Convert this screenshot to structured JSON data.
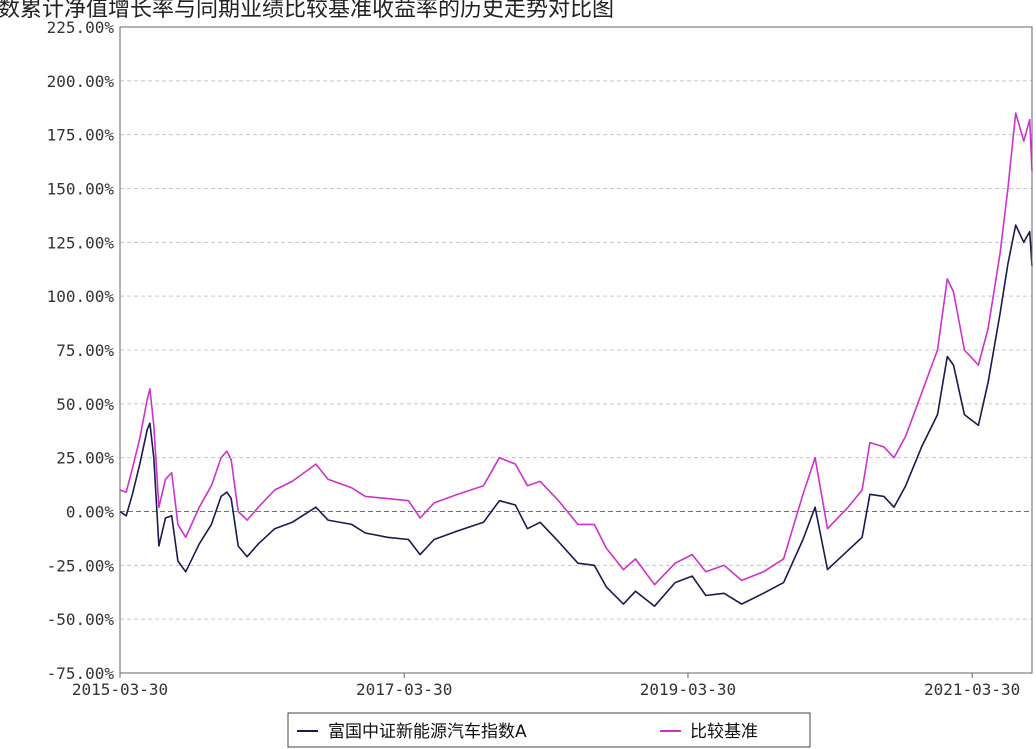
{
  "page": {
    "title_fragment": "数累计净值增长率与同期业绩比较基准收益率的历史走势对比图"
  },
  "chart_data": {
    "type": "line",
    "x_range": [
      "2015-03-30",
      "2021-08-31"
    ],
    "ylim": [
      -75,
      225
    ],
    "y_ticks": [
      "225.00%",
      "200.00%",
      "175.00%",
      "150.00%",
      "125.00%",
      "100.00%",
      "75.00%",
      "50.00%",
      "25.00%",
      "0.00%",
      "-25.00%",
      "-50.00%",
      "-75.00%"
    ],
    "y_tick_values": [
      225,
      200,
      175,
      150,
      125,
      100,
      75,
      50,
      25,
      0,
      -25,
      -50,
      -75
    ],
    "x_ticks": [
      "2015-03-30",
      "2017-03-30",
      "2019-03-30",
      "2021-03-30"
    ],
    "grid": true,
    "legend_position": "bottom-center",
    "zero_line": true,
    "series": [
      {
        "name": "富国中证新能源汽车指数A",
        "color": "#1a1a4e",
        "points": [
          [
            "2015-03-30",
            0
          ],
          [
            "2015-04-15",
            -2
          ],
          [
            "2015-05-01",
            8
          ],
          [
            "2015-05-20",
            22
          ],
          [
            "2015-06-08",
            38
          ],
          [
            "2015-06-15",
            41
          ],
          [
            "2015-06-25",
            25
          ],
          [
            "2015-07-08",
            -16
          ],
          [
            "2015-07-25",
            -3
          ],
          [
            "2015-08-10",
            -2
          ],
          [
            "2015-08-26",
            -23
          ],
          [
            "2015-09-15",
            -28
          ],
          [
            "2015-10-20",
            -15
          ],
          [
            "2015-11-20",
            -6
          ],
          [
            "2015-12-15",
            7
          ],
          [
            "2015-12-30",
            9
          ],
          [
            "2016-01-10",
            6
          ],
          [
            "2016-01-28",
            -16
          ],
          [
            "2016-02-20",
            -21
          ],
          [
            "2016-03-20",
            -15
          ],
          [
            "2016-05-01",
            -8
          ],
          [
            "2016-06-15",
            -5
          ],
          [
            "2016-08-15",
            2
          ],
          [
            "2016-09-15",
            -4
          ],
          [
            "2016-11-15",
            -6
          ],
          [
            "2016-12-20",
            -10
          ],
          [
            "2017-02-15",
            -12
          ],
          [
            "2017-04-10",
            -13
          ],
          [
            "2017-05-10",
            -20
          ],
          [
            "2017-06-15",
            -13
          ],
          [
            "2017-08-15",
            -9
          ],
          [
            "2017-10-20",
            -5
          ],
          [
            "2017-11-30",
            5
          ],
          [
            "2018-01-10",
            3
          ],
          [
            "2018-02-10",
            -8
          ],
          [
            "2018-03-15",
            -5
          ],
          [
            "2018-05-01",
            -14
          ],
          [
            "2018-06-20",
            -24
          ],
          [
            "2018-08-01",
            -25
          ],
          [
            "2018-09-01",
            -35
          ],
          [
            "2018-10-15",
            -43
          ],
          [
            "2018-11-15",
            -37
          ],
          [
            "2019-01-03",
            -44
          ],
          [
            "2019-02-25",
            -33
          ],
          [
            "2019-04-10",
            -30
          ],
          [
            "2019-05-15",
            -39
          ],
          [
            "2019-07-01",
            -38
          ],
          [
            "2019-08-15",
            -43
          ],
          [
            "2019-10-10",
            -38
          ],
          [
            "2019-12-01",
            -33
          ],
          [
            "2020-01-20",
            -13
          ],
          [
            "2020-02-20",
            2
          ],
          [
            "2020-03-23",
            -27
          ],
          [
            "2020-05-15",
            -18
          ],
          [
            "2020-06-20",
            -12
          ],
          [
            "2020-07-10",
            8
          ],
          [
            "2020-08-15",
            7
          ],
          [
            "2020-09-10",
            2
          ],
          [
            "2020-10-10",
            12
          ],
          [
            "2020-11-20",
            30
          ],
          [
            "2020-12-31",
            45
          ],
          [
            "2021-01-25",
            72
          ],
          [
            "2021-02-10",
            68
          ],
          [
            "2021-03-10",
            45
          ],
          [
            "2021-04-15",
            40
          ],
          [
            "2021-05-10",
            60
          ],
          [
            "2021-06-10",
            92
          ],
          [
            "2021-06-30",
            115
          ],
          [
            "2021-07-20",
            133
          ],
          [
            "2021-08-10",
            125
          ],
          [
            "2021-08-25",
            130
          ],
          [
            "2021-08-31",
            114
          ]
        ]
      },
      {
        "name": "比较基准",
        "color": "#cc33cc",
        "points": [
          [
            "2015-03-30",
            10
          ],
          [
            "2015-04-15",
            9
          ],
          [
            "2015-05-01",
            20
          ],
          [
            "2015-05-20",
            34
          ],
          [
            "2015-06-08",
            52
          ],
          [
            "2015-06-15",
            57
          ],
          [
            "2015-06-25",
            40
          ],
          [
            "2015-07-08",
            2
          ],
          [
            "2015-07-25",
            15
          ],
          [
            "2015-08-10",
            18
          ],
          [
            "2015-08-26",
            -6
          ],
          [
            "2015-09-15",
            -12
          ],
          [
            "2015-10-20",
            2
          ],
          [
            "2015-11-20",
            12
          ],
          [
            "2015-12-15",
            25
          ],
          [
            "2015-12-30",
            28
          ],
          [
            "2016-01-10",
            24
          ],
          [
            "2016-01-28",
            0
          ],
          [
            "2016-02-20",
            -4
          ],
          [
            "2016-03-20",
            2
          ],
          [
            "2016-05-01",
            10
          ],
          [
            "2016-06-15",
            14
          ],
          [
            "2016-08-15",
            22
          ],
          [
            "2016-09-15",
            15
          ],
          [
            "2016-11-15",
            11
          ],
          [
            "2016-12-20",
            7
          ],
          [
            "2017-02-15",
            6
          ],
          [
            "2017-04-10",
            5
          ],
          [
            "2017-05-10",
            -3
          ],
          [
            "2017-06-15",
            4
          ],
          [
            "2017-08-15",
            8
          ],
          [
            "2017-10-20",
            12
          ],
          [
            "2017-11-30",
            25
          ],
          [
            "2018-01-10",
            22
          ],
          [
            "2018-02-10",
            12
          ],
          [
            "2018-03-15",
            14
          ],
          [
            "2018-05-01",
            5
          ],
          [
            "2018-06-20",
            -6
          ],
          [
            "2018-08-01",
            -6
          ],
          [
            "2018-09-01",
            -17
          ],
          [
            "2018-10-15",
            -27
          ],
          [
            "2018-11-15",
            -22
          ],
          [
            "2019-01-03",
            -34
          ],
          [
            "2019-02-25",
            -24
          ],
          [
            "2019-04-10",
            -20
          ],
          [
            "2019-05-15",
            -28
          ],
          [
            "2019-07-01",
            -25
          ],
          [
            "2019-08-15",
            -32
          ],
          [
            "2019-10-10",
            -28
          ],
          [
            "2019-12-01",
            -22
          ],
          [
            "2020-01-20",
            8
          ],
          [
            "2020-02-20",
            25
          ],
          [
            "2020-03-23",
            -8
          ],
          [
            "2020-05-15",
            2
          ],
          [
            "2020-06-20",
            10
          ],
          [
            "2020-07-10",
            32
          ],
          [
            "2020-08-15",
            30
          ],
          [
            "2020-09-10",
            25
          ],
          [
            "2020-10-10",
            35
          ],
          [
            "2020-11-20",
            55
          ],
          [
            "2020-12-31",
            75
          ],
          [
            "2021-01-25",
            108
          ],
          [
            "2021-02-10",
            102
          ],
          [
            "2021-03-10",
            75
          ],
          [
            "2021-04-15",
            68
          ],
          [
            "2021-05-10",
            85
          ],
          [
            "2021-06-10",
            120
          ],
          [
            "2021-06-30",
            150
          ],
          [
            "2021-07-20",
            185
          ],
          [
            "2021-08-10",
            172
          ],
          [
            "2021-08-25",
            182
          ],
          [
            "2021-08-31",
            158
          ]
        ]
      }
    ]
  }
}
